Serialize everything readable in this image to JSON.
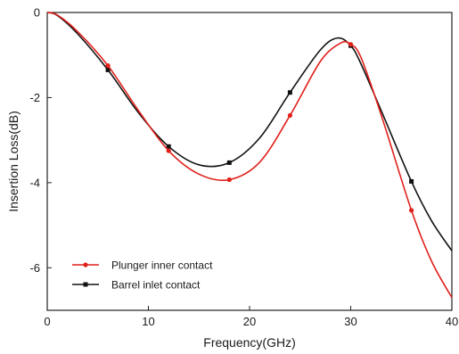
{
  "chart_data": {
    "type": "line",
    "xlabel": "Frequency(GHz)",
    "ylabel": "Insertion Loss(dB)",
    "xlim": [
      0,
      40
    ],
    "ylim": [
      -7,
      0
    ],
    "x_ticks": [
      0,
      10,
      20,
      30,
      40
    ],
    "y_ticks": [
      0,
      -2,
      -4,
      -6
    ],
    "x_tick_labels": [
      "0",
      "10",
      "20",
      "30",
      "40"
    ],
    "y_tick_labels": [
      "0",
      "-2",
      "-4",
      "-6"
    ],
    "grid": false,
    "legend_position": "bottom-left",
    "series": [
      {
        "name": "Plunger inner contact",
        "color": "#e0201b",
        "marker": "circle",
        "x": [
          0,
          1,
          3,
          6,
          9,
          12,
          15,
          18,
          21,
          24,
          27,
          29,
          30,
          31,
          33,
          36,
          38,
          40
        ],
        "y": [
          0,
          -0.06,
          -0.45,
          -1.25,
          -2.3,
          -3.25,
          -3.8,
          -3.93,
          -3.52,
          -2.42,
          -1.15,
          -0.72,
          -0.75,
          -1.05,
          -2.4,
          -4.65,
          -5.85,
          -6.7
        ],
        "markers_x": [
          6,
          12,
          18,
          24,
          30,
          36
        ],
        "markers_y": [
          -1.25,
          -3.25,
          -3.93,
          -2.42,
          -0.75,
          -4.65
        ]
      },
      {
        "name": "Barrel inlet contact",
        "color": "#111111",
        "marker": "square",
        "x": [
          0,
          1,
          3,
          6,
          9,
          12,
          15,
          18,
          21,
          24,
          27,
          28.7,
          30,
          31,
          33,
          36,
          38,
          40
        ],
        "y": [
          0,
          -0.07,
          -0.5,
          -1.35,
          -2.35,
          -3.15,
          -3.58,
          -3.53,
          -2.95,
          -1.88,
          -0.88,
          -0.6,
          -0.78,
          -1.2,
          -2.3,
          -3.97,
          -4.9,
          -5.6
        ],
        "markers_x": [
          6,
          12,
          18,
          24,
          30,
          36
        ],
        "markers_y": [
          -1.35,
          -3.15,
          -3.53,
          -1.88,
          -0.78,
          -3.97
        ]
      }
    ]
  }
}
